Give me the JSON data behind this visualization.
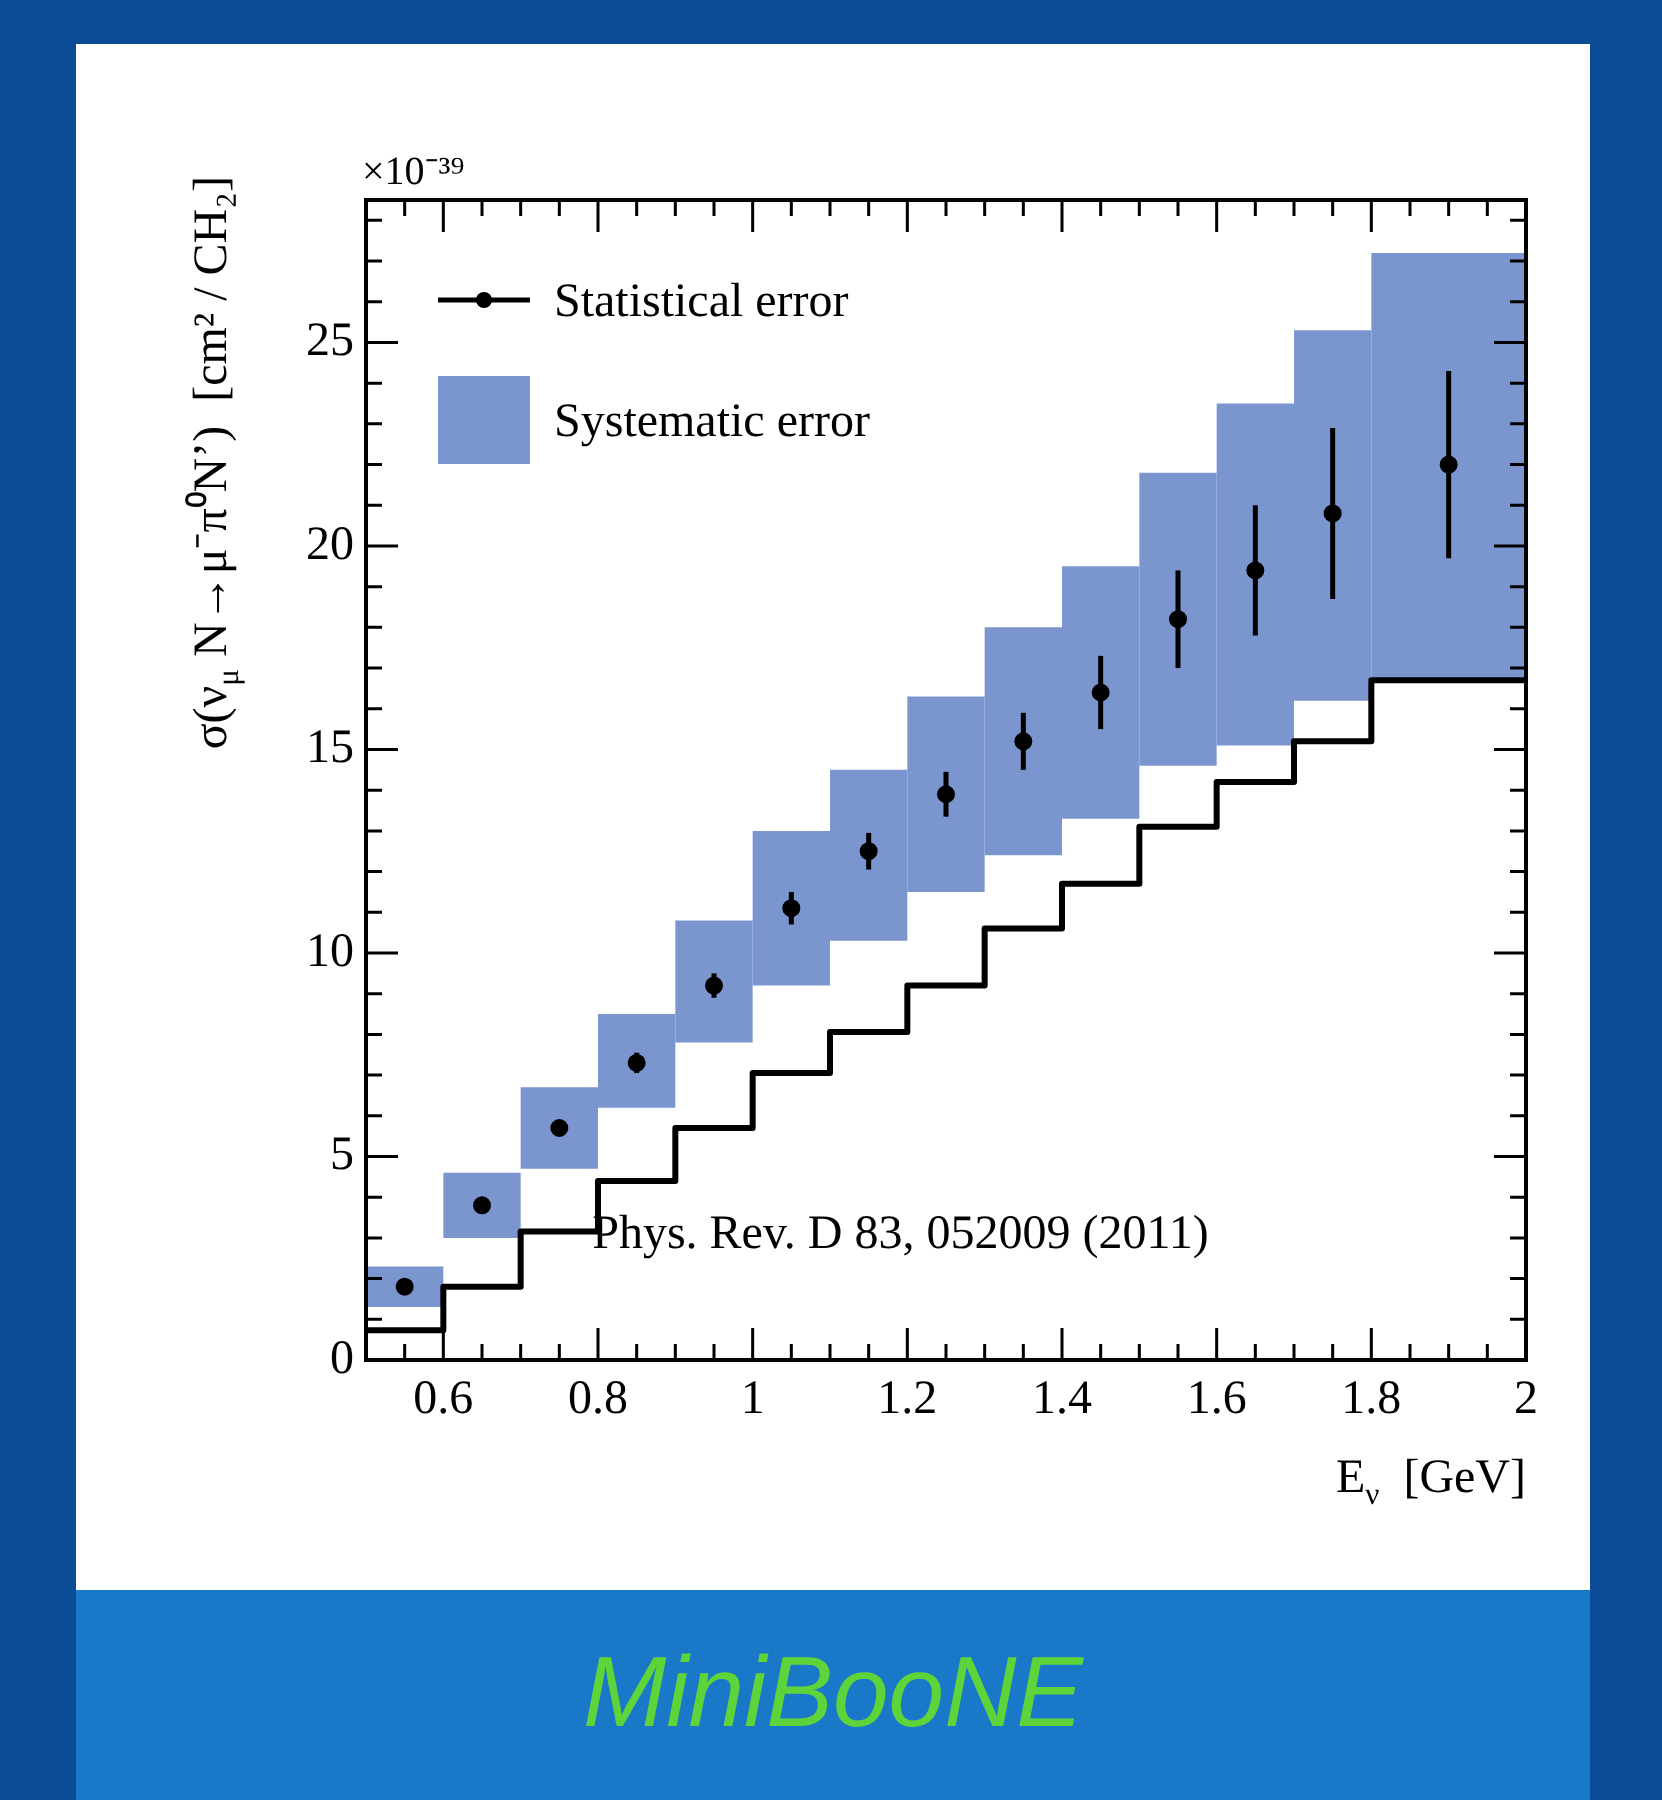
{
  "chart_data": {
    "type": "scatter",
    "xlabel": "E$_{ν}$  [GeV]",
    "ylabel": "σ(ν$_{μ}$ N→μ⁻π⁰N’)  [cm² / CH₂]",
    "annotations": [
      "×10⁻³⁹",
      "Phys. Rev. D 83, 052009 (2011)",
      "MiniBooNE"
    ],
    "xlim": [
      0.5,
      2
    ],
    "ylim": [
      0,
      28.5
    ],
    "xticks": [
      {
        "value": 0.5,
        "label": null
      },
      {
        "value": 0.55,
        "label": null
      },
      0.6,
      {
        "value": 0.65,
        "label": null
      },
      {
        "value": 0.7,
        "label": null
      },
      {
        "value": 0.75,
        "label": null
      },
      0.8,
      {
        "value": 0.85,
        "label": null
      },
      {
        "value": 0.9,
        "label": null
      },
      {
        "value": 0.95,
        "label": null
      },
      1,
      {
        "value": 1.05,
        "label": null
      },
      {
        "value": 1.1,
        "label": null
      },
      {
        "value": 1.15,
        "label": null
      },
      1.2,
      {
        "value": 1.25,
        "label": null
      },
      {
        "value": 1.3,
        "label": null
      },
      {
        "value": 1.35,
        "label": null
      },
      1.4,
      {
        "value": 1.45,
        "label": null
      },
      {
        "value": 1.5,
        "label": null
      },
      {
        "value": 1.55,
        "label": null
      },
      1.6,
      {
        "value": 1.65,
        "label": null
      },
      {
        "value": 1.7,
        "label": null
      },
      {
        "value": 1.75,
        "label": null
      },
      1.8,
      {
        "value": 1.85,
        "label": null
      },
      {
        "value": 1.9,
        "label": null
      },
      {
        "value": 1.95,
        "label": null
      },
      2
    ],
    "yticks": [
      0,
      {
        "value": 1,
        "label": null
      },
      {
        "value": 2,
        "label": null
      },
      {
        "value": 3,
        "label": null
      },
      {
        "value": 4,
        "label": null
      },
      5,
      {
        "value": 6,
        "label": null
      },
      {
        "value": 7,
        "label": null
      },
      {
        "value": 8,
        "label": null
      },
      {
        "value": 9,
        "label": null
      },
      10,
      {
        "value": 11,
        "label": null
      },
      {
        "value": 12,
        "label": null
      },
      {
        "value": 13,
        "label": null
      },
      {
        "value": 14,
        "label": null
      },
      15,
      {
        "value": 16,
        "label": null
      },
      {
        "value": 17,
        "label": null
      },
      {
        "value": 18,
        "label": null
      },
      {
        "value": 19,
        "label": null
      },
      20,
      {
        "value": 21,
        "label": null
      },
      {
        "value": 22,
        "label": null
      },
      {
        "value": 23,
        "label": null
      },
      {
        "value": 24,
        "label": null
      },
      25,
      {
        "value": 26,
        "label": null
      },
      {
        "value": 27,
        "label": null
      },
      {
        "value": 28,
        "label": null
      }
    ],
    "legend": "top left",
    "series": [
      {
        "name": "Statistical error",
        "color": "#000000",
        "marker": "circle",
        "x": [
          0.55,
          0.65,
          0.75,
          0.85,
          0.95,
          1.05,
          1.15,
          1.25,
          1.35,
          1.45,
          1.55,
          1.65,
          1.75,
          1.9
        ],
        "values": [
          1.8,
          3.8,
          5.7,
          7.3,
          9.2,
          11.1,
          12.5,
          13.9,
          15.2,
          16.4,
          18.2,
          19.4,
          20.8,
          22.0
        ],
        "errors": [
          0.1,
          0.15,
          0.2,
          0.25,
          0.3,
          0.4,
          0.45,
          0.55,
          0.7,
          0.9,
          1.2,
          1.6,
          2.1,
          2.3
        ]
      },
      {
        "name": "Systematic error",
        "type": "bar",
        "color": "#7b96cf",
        "x": [
          0.55,
          0.65,
          0.75,
          0.85,
          0.95,
          1.05,
          1.15,
          1.25,
          1.35,
          1.45,
          1.55,
          1.65,
          1.75,
          1.9
        ],
        "base": [
          1.3,
          3.0,
          4.7,
          6.2,
          7.8,
          9.2,
          10.3,
          11.5,
          12.4,
          13.3,
          14.6,
          15.1,
          16.2,
          16.7
        ],
        "values": [
          1.0,
          1.6,
          2.0,
          2.3,
          3.0,
          3.8,
          4.2,
          4.8,
          5.6,
          6.2,
          7.2,
          8.4,
          9.1,
          10.5
        ]
      },
      {
        "type": "step",
        "color": "#000000",
        "x": [
          0.5,
          0.6,
          0.7,
          0.8,
          0.9,
          1.0,
          1.1,
          1.2,
          1.3,
          1.4,
          1.5,
          1.6,
          1.7,
          1.8,
          2.0
        ],
        "values": [
          0.73,
          1.8,
          3.16,
          4.4,
          5.7,
          7.05,
          8.06,
          9.2,
          10.6,
          11.7,
          13.1,
          14.2,
          15.2,
          16.7,
          16.7
        ]
      }
    ]
  }
}
